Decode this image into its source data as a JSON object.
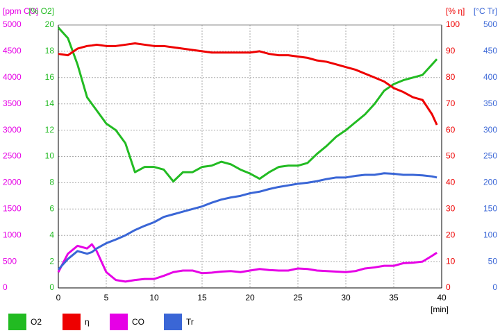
{
  "chart_data": {
    "type": "line",
    "xlim": [
      0,
      40
    ],
    "xticks": [
      0,
      5,
      10,
      15,
      20,
      25,
      30,
      35,
      40
    ],
    "xlabel": "[min]",
    "grid": true,
    "x": [
      0,
      1,
      2,
      3,
      3.5,
      4,
      5,
      6,
      7,
      8,
      9,
      10,
      11,
      12,
      13,
      14,
      15,
      16,
      17,
      18,
      19,
      20,
      21,
      22,
      23,
      24,
      25,
      26,
      27,
      28,
      29,
      30,
      31,
      32,
      33,
      34,
      35,
      36,
      37,
      38,
      39,
      39.5
    ],
    "axes": [
      {
        "label": "[ppm CO]",
        "color": "#e600e6",
        "side": "left",
        "lim": [
          0,
          5000
        ],
        "ticks": [
          0,
          500,
          1000,
          1500,
          2000,
          2500,
          3000,
          3500,
          4000,
          4500,
          5000
        ]
      },
      {
        "label": "[% O2]",
        "color": "#22bb22",
        "side": "left",
        "lim": [
          0,
          20
        ],
        "ticks": [
          0,
          2,
          4,
          6,
          8,
          10,
          12,
          14,
          16,
          18,
          20
        ]
      },
      {
        "label": "[% η]",
        "color": "#ee0000",
        "side": "right",
        "lim": [
          0,
          100
        ],
        "ticks": [
          0,
          10,
          20,
          30,
          40,
          50,
          60,
          70,
          80,
          90,
          100
        ]
      },
      {
        "label": "[°C Tr]",
        "color": "#3a66d6",
        "side": "right",
        "lim": [
          0,
          500
        ],
        "ticks": [
          0,
          50,
          100,
          150,
          200,
          250,
          300,
          350,
          400,
          450,
          500
        ]
      }
    ],
    "series": [
      {
        "name": "O2",
        "color": "#22bb22",
        "axis": 1,
        "values": [
          19.8,
          19.0,
          17.0,
          14.5,
          14.0,
          13.5,
          12.5,
          12.0,
          11.0,
          8.8,
          9.2,
          9.2,
          9.0,
          8.1,
          8.8,
          8.8,
          9.2,
          9.3,
          9.6,
          9.4,
          9.0,
          8.7,
          8.3,
          8.8,
          9.2,
          9.3,
          9.3,
          9.5,
          10.2,
          10.8,
          11.5,
          12.0,
          12.6,
          13.2,
          14.0,
          15.0,
          15.5,
          15.8,
          16.0,
          16.2,
          17.0,
          17.4
        ]
      },
      {
        "name": "η",
        "color": "#ee0000",
        "axis": 2,
        "values": [
          89,
          88.5,
          91,
          92,
          92.2,
          92.5,
          92,
          92,
          92.5,
          93,
          92.5,
          92,
          92,
          91.5,
          91,
          90.5,
          90,
          89.5,
          89.5,
          89.5,
          89.5,
          89.5,
          90,
          89,
          88.5,
          88.5,
          88,
          87.5,
          86.5,
          86,
          85,
          84,
          83,
          81.5,
          80,
          78.5,
          76,
          74.5,
          72.5,
          71.5,
          66,
          62
        ]
      },
      {
        "name": "CO",
        "color": "#e600e6",
        "axis": 0,
        "values": [
          300,
          650,
          800,
          750,
          830,
          700,
          300,
          150,
          120,
          150,
          170,
          170,
          230,
          300,
          330,
          330,
          280,
          290,
          310,
          320,
          300,
          330,
          360,
          340,
          330,
          330,
          370,
          360,
          330,
          320,
          310,
          300,
          320,
          370,
          390,
          420,
          420,
          470,
          480,
          500,
          610,
          670
        ]
      },
      {
        "name": "Tr",
        "color": "#3a66d6",
        "axis": 3,
        "values": [
          35,
          55,
          70,
          65,
          68,
          75,
          85,
          92,
          100,
          110,
          118,
          125,
          135,
          140,
          145,
          150,
          155,
          162,
          168,
          172,
          175,
          180,
          183,
          188,
          192,
          195,
          198,
          200,
          203,
          207,
          210,
          210,
          213,
          215,
          215,
          218,
          217,
          215,
          215,
          214,
          212,
          210
        ]
      }
    ]
  }
}
